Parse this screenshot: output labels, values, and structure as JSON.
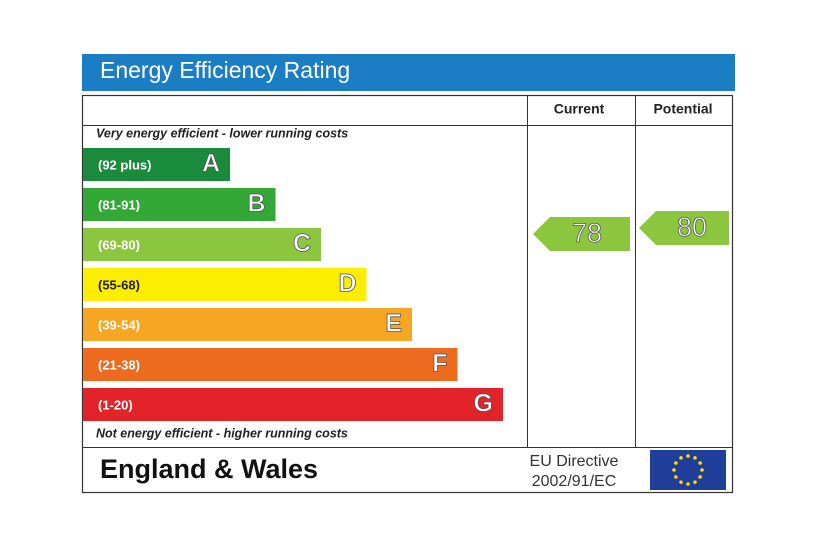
{
  "title": "Energy Efficiency Rating",
  "columns": [
    "Current",
    "Potential"
  ],
  "top_note": "Very energy efficient - lower running costs",
  "bottom_note": "Not energy efficient - higher running costs",
  "bands": [
    {
      "range": "(92 plus)",
      "letter": "A",
      "color": "#1a8a3c"
    },
    {
      "range": "(81-91)",
      "letter": "B",
      "color": "#34a837"
    },
    {
      "range": "(69-80)",
      "letter": "C",
      "color": "#8cc63e"
    },
    {
      "range": "(55-68)",
      "letter": "D",
      "color": "#fded00"
    },
    {
      "range": "(39-54)",
      "letter": "E",
      "color": "#f6a623"
    },
    {
      "range": "(21-38)",
      "letter": "F",
      "color": "#ed6a1f"
    },
    {
      "range": "(1-20)",
      "letter": "G",
      "color": "#e2232a"
    }
  ],
  "current": "78",
  "potential": "80",
  "region": "England & Wales",
  "directive": [
    "EU Directive",
    "2002/91/EC"
  ]
}
